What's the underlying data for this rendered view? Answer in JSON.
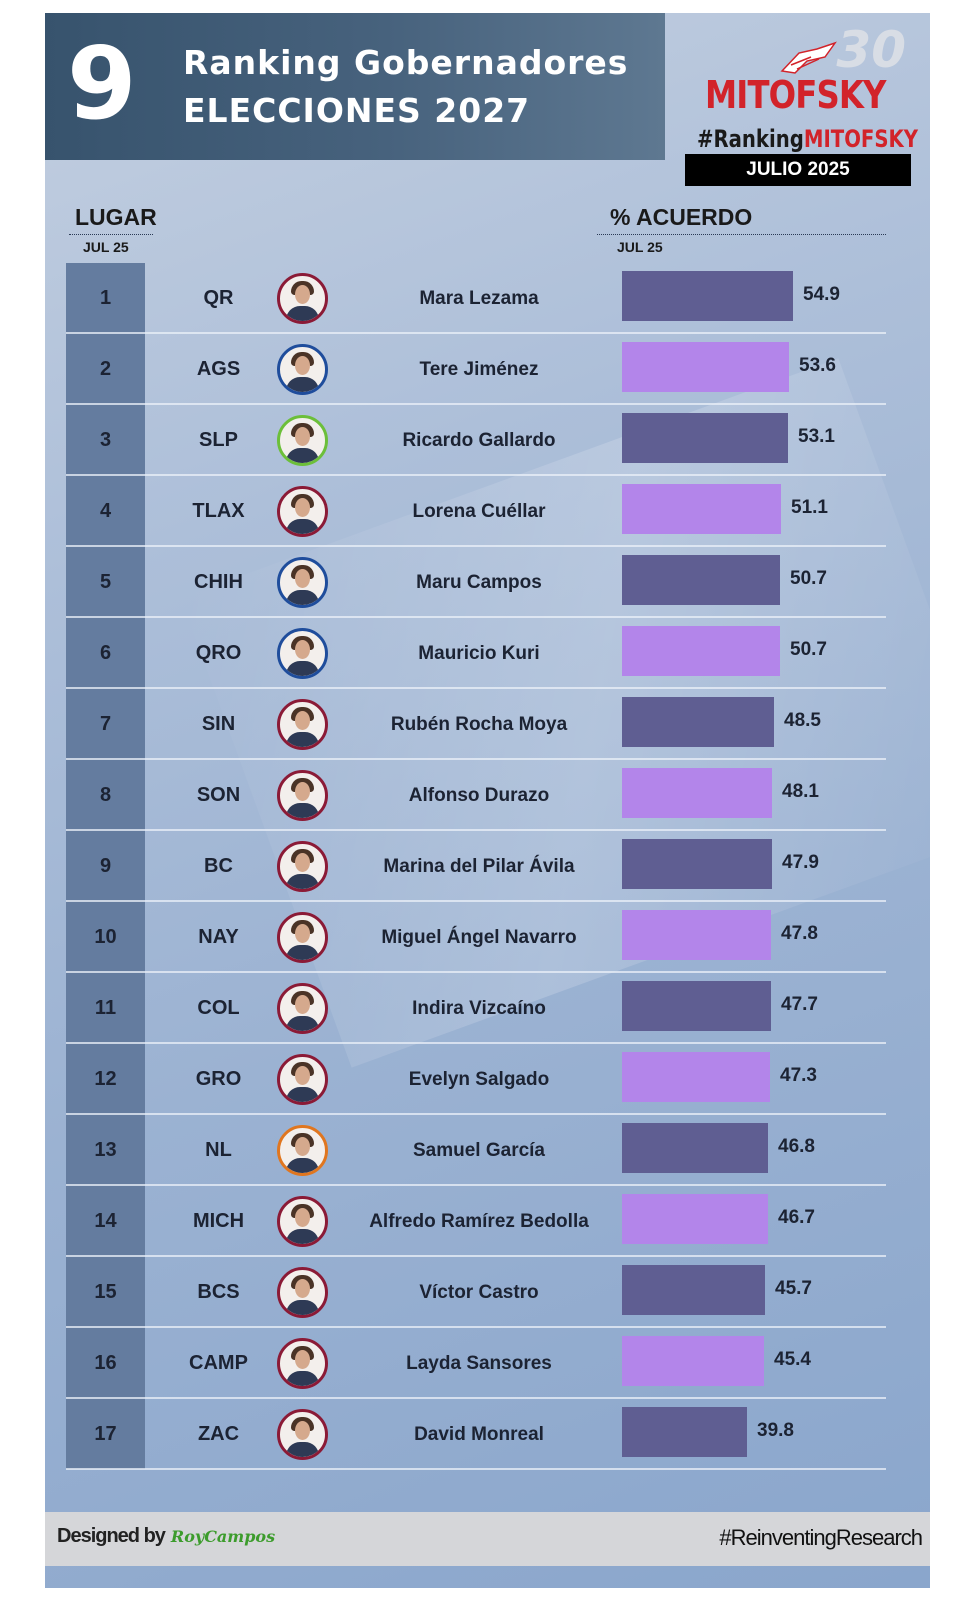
{
  "header": {
    "number": "9",
    "title_line1": "Ranking Gobernadores",
    "title_line2": "ELECCIONES 2027"
  },
  "logo": {
    "anniversary": "30",
    "brand": "MITOFSKY",
    "hashtag_prefix": "#Ranking",
    "hashtag_brand": "MITOFSKY",
    "date": "JULIO 2025",
    "brand_color": "#d2232a"
  },
  "columns": {
    "lugar": "LUGAR",
    "lugar_sub": "JUL 25",
    "acuerdo": "% ACUERDO",
    "acuerdo_sub": "JUL 25"
  },
  "colors": {
    "bar_dark": "#5f5e92",
    "bar_light": "#b385ea"
  },
  "rows": [
    {
      "rank": "1",
      "state": "QR",
      "name": "Mara Lezama",
      "value": 54.9,
      "value_label": "54.9",
      "shade": "dark",
      "ring": "#8b1a36"
    },
    {
      "rank": "2",
      "state": "AGS",
      "name": "Tere Jiménez",
      "value": 53.6,
      "value_label": "53.6",
      "shade": "light",
      "ring": "#1f4d9c"
    },
    {
      "rank": "3",
      "state": "SLP",
      "name": "Ricardo Gallardo",
      "value": 53.1,
      "value_label": "53.1",
      "shade": "dark",
      "ring": "#6cbf3a"
    },
    {
      "rank": "4",
      "state": "TLAX",
      "name": "Lorena Cuéllar",
      "value": 51.1,
      "value_label": "51.1",
      "shade": "light",
      "ring": "#8b1a36"
    },
    {
      "rank": "5",
      "state": "CHIH",
      "name": "Maru Campos",
      "value": 50.7,
      "value_label": "50.7",
      "shade": "dark",
      "ring": "#1f4d9c"
    },
    {
      "rank": "6",
      "state": "QRO",
      "name": "Mauricio Kuri",
      "value": 50.7,
      "value_label": "50.7",
      "shade": "light",
      "ring": "#1f4d9c"
    },
    {
      "rank": "7",
      "state": "SIN",
      "name": "Rubén Rocha Moya",
      "value": 48.5,
      "value_label": "48.5",
      "shade": "dark",
      "ring": "#8b1a36"
    },
    {
      "rank": "8",
      "state": "SON",
      "name": "Alfonso Durazo",
      "value": 48.1,
      "value_label": "48.1",
      "shade": "light",
      "ring": "#8b1a36"
    },
    {
      "rank": "9",
      "state": "BC",
      "name": "Marina del Pilar Ávila",
      "value": 47.9,
      "value_label": "47.9",
      "shade": "dark",
      "ring": "#8b1a36"
    },
    {
      "rank": "10",
      "state": "NAY",
      "name": "Miguel Ángel Navarro",
      "value": 47.8,
      "value_label": "47.8",
      "shade": "light",
      "ring": "#8b1a36"
    },
    {
      "rank": "11",
      "state": "COL",
      "name": "Indira Vizcaíno",
      "value": 47.7,
      "value_label": "47.7",
      "shade": "dark",
      "ring": "#8b1a36"
    },
    {
      "rank": "12",
      "state": "GRO",
      "name": "Evelyn Salgado",
      "value": 47.3,
      "value_label": "47.3",
      "shade": "light",
      "ring": "#8b1a36"
    },
    {
      "rank": "13",
      "state": "NL",
      "name": "Samuel García",
      "value": 46.8,
      "value_label": "46.8",
      "shade": "dark",
      "ring": "#e0761f"
    },
    {
      "rank": "14",
      "state": "MICH",
      "name": "Alfredo Ramírez Bedolla",
      "value": 46.7,
      "value_label": "46.7",
      "shade": "light",
      "ring": "#8b1a36"
    },
    {
      "rank": "15",
      "state": "BCS",
      "name": "Víctor Castro",
      "value": 45.7,
      "value_label": "45.7",
      "shade": "dark",
      "ring": "#8b1a36"
    },
    {
      "rank": "16",
      "state": "CAMP",
      "name": "Layda Sansores",
      "value": 45.4,
      "value_label": "45.4",
      "shade": "light",
      "ring": "#8b1a36"
    },
    {
      "rank": "17",
      "state": "ZAC",
      "name": "David Monreal",
      "value": 39.8,
      "value_label": "39.8",
      "shade": "dark",
      "ring": "#8b1a36"
    }
  ],
  "chart_data": {
    "type": "bar",
    "orientation": "horizontal",
    "categories": [
      "Mara Lezama",
      "Tere Jiménez",
      "Ricardo Gallardo",
      "Lorena Cuéllar",
      "Maru Campos",
      "Mauricio Kuri",
      "Rubén Rocha Moya",
      "Alfonso Durazo",
      "Marina del Pilar Ávila",
      "Miguel Ángel Navarro",
      "Indira Vizcaíno",
      "Evelyn Salgado",
      "Samuel García",
      "Alfredo Ramírez Bedolla",
      "Víctor Castro",
      "Layda Sansores",
      "David Monreal"
    ],
    "values": [
      54.9,
      53.6,
      53.1,
      51.1,
      50.7,
      50.7,
      48.5,
      48.1,
      47.9,
      47.8,
      47.7,
      47.3,
      46.8,
      46.7,
      45.7,
      45.4,
      39.8
    ],
    "title": "Ranking Gobernadores ELECCIONES 2027",
    "xlabel": "% ACUERDO",
    "ylabel": "LUGAR",
    "data_labels": true,
    "grid": false,
    "legend": "none"
  },
  "footer": {
    "designed_by": "Designed by",
    "signature": "RoyCampos",
    "hashtag": "#ReinventingResearch"
  }
}
